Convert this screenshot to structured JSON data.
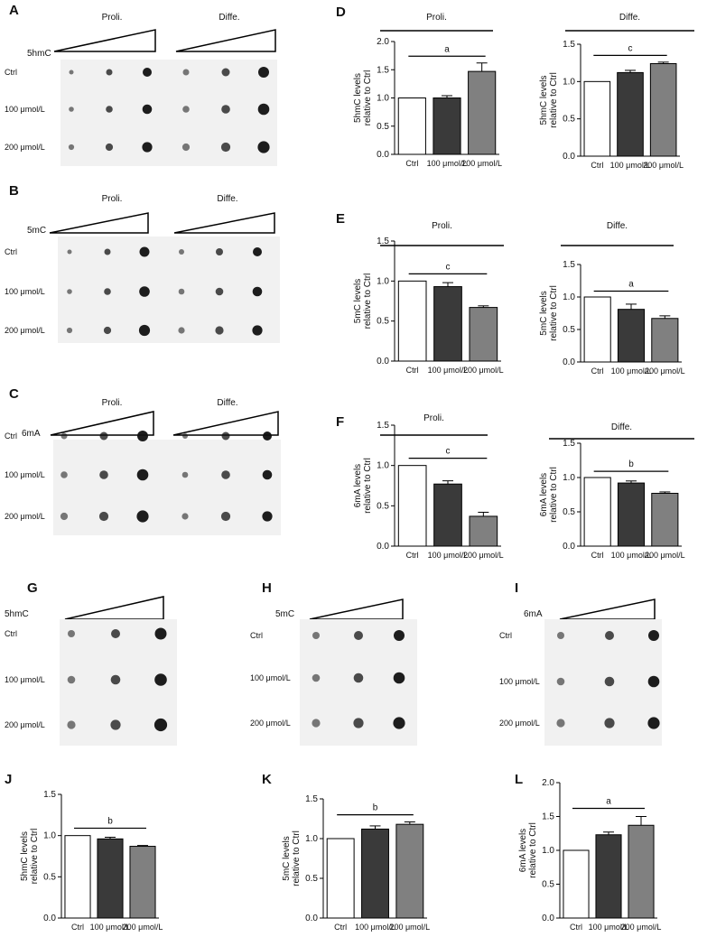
{
  "colors": {
    "ctrl_bar": "#ffffff",
    "mid_bar": "#3a3a3a",
    "high_bar": "#808080",
    "blot_bg": "#f1f1f1",
    "dot": "#111111"
  },
  "blots": [
    {
      "id": "A",
      "marker": "5hmC",
      "groups": [
        "Proli.",
        "Diffe."
      ],
      "rows": [
        "Ctrl",
        "100 μmol/L",
        "200 μmol/L"
      ],
      "cols": 3
    },
    {
      "id": "B",
      "marker": "5mC",
      "groups": [
        "Proli.",
        "Diffe."
      ],
      "rows": [
        "Ctrl",
        "100 μmol/L",
        "200 μmol/L"
      ],
      "cols": 3
    },
    {
      "id": "C",
      "marker": "6mA",
      "groups": [
        "Proli.",
        "Diffe."
      ],
      "rows": [
        "Ctrl",
        "100 μmol/L",
        "200 μmol/L"
      ],
      "cols": 3
    },
    {
      "id": "G",
      "marker": "5hmC",
      "groups": [],
      "rows": [
        "Ctrl",
        "100 μmol/L",
        "200 μmol/L"
      ],
      "cols": 3
    },
    {
      "id": "H",
      "marker": "5mC",
      "groups": [],
      "rows": [
        "Ctrl",
        "100 μmol/L",
        "200 μmol/L"
      ],
      "cols": 3
    },
    {
      "id": "I",
      "marker": "6mA",
      "groups": [],
      "rows": [
        "Ctrl",
        "100 μmol/L",
        "200 μmol/L"
      ],
      "cols": 3
    }
  ],
  "chart_data": [
    {
      "id": "D",
      "type": "bar",
      "title": "Proli.",
      "ylabel": "5hmC levels relative to Ctrl",
      "categories": [
        "Ctrl",
        "100 μmol/L",
        "200 μmol/L"
      ],
      "values": [
        1.0,
        1.0,
        1.47
      ],
      "errors": [
        0,
        0.04,
        0.15
      ],
      "ylim": [
        0,
        2.0
      ],
      "yticks": [
        "0.0",
        "0.5",
        "1.0",
        "1.5",
        "2.0"
      ],
      "sig": "a"
    },
    {
      "id": "D2",
      "type": "bar",
      "title": "Diffe.",
      "ylabel": "5hmC levels relative to Ctrl",
      "categories": [
        "Ctrl",
        "100 μmol/L",
        "200 μmol/L"
      ],
      "values": [
        1.0,
        1.12,
        1.24
      ],
      "errors": [
        0,
        0.03,
        0.02
      ],
      "ylim": [
        0,
        1.5
      ],
      "yticks": [
        "0.0",
        "0.5",
        "1.0",
        "1.5"
      ],
      "sig": "c"
    },
    {
      "id": "E",
      "type": "bar",
      "title": "Proli.",
      "ylabel": "5mC levels relative to Ctrl",
      "categories": [
        "Ctrl",
        "100 μmol/L",
        "200 μmol/L"
      ],
      "values": [
        1.0,
        0.93,
        0.67
      ],
      "errors": [
        0,
        0.05,
        0.02
      ],
      "ylim": [
        0,
        1.5
      ],
      "yticks": [
        "0.0",
        "0.5",
        "1.0",
        "1.5"
      ],
      "sig": "c"
    },
    {
      "id": "E2",
      "type": "bar",
      "title": "Diffe.",
      "ylabel": "5mC levels relative to Ctrl",
      "categories": [
        "Ctrl",
        "100 μmol/L",
        "200 μmol/L"
      ],
      "values": [
        1.0,
        0.81,
        0.67
      ],
      "errors": [
        0,
        0.08,
        0.04
      ],
      "ylim": [
        0,
        1.5
      ],
      "yticks": [
        "0.0",
        "0.5",
        "1.0",
        "1.5"
      ],
      "sig": "a"
    },
    {
      "id": "F",
      "type": "bar",
      "title": "Proli.",
      "ylabel": "6mA levels relative to Ctrl",
      "categories": [
        "Ctrl",
        "100 μmol/L",
        "200 μmol/L"
      ],
      "values": [
        1.0,
        0.77,
        0.37
      ],
      "errors": [
        0,
        0.04,
        0.05
      ],
      "ylim": [
        0,
        1.5
      ],
      "yticks": [
        "0.0",
        "0.5",
        "1.0",
        "1.5"
      ],
      "sig": "c"
    },
    {
      "id": "F2",
      "type": "bar",
      "title": "Diffe.",
      "ylabel": "6mA levels relative to Ctrl",
      "categories": [
        "Ctrl",
        "100 μmol/L",
        "200 μmol/L"
      ],
      "values": [
        1.0,
        0.92,
        0.77
      ],
      "errors": [
        0,
        0.03,
        0.02
      ],
      "ylim": [
        0,
        1.5
      ],
      "yticks": [
        "0.0",
        "0.5",
        "1.0",
        "1.5"
      ],
      "sig": "b"
    },
    {
      "id": "J",
      "type": "bar",
      "title": "",
      "ylabel": "5hmC levels relative to Ctrl",
      "categories": [
        "Ctrl",
        "100 μmol/L",
        "200 μmol/L"
      ],
      "values": [
        1.0,
        0.96,
        0.87
      ],
      "errors": [
        0,
        0.02,
        0.01
      ],
      "ylim": [
        0,
        1.5
      ],
      "yticks": [
        "0.0",
        "0.5",
        "1.0",
        "1.5"
      ],
      "sig": "b"
    },
    {
      "id": "K",
      "type": "bar",
      "title": "",
      "ylabel": "5mC levels relative to Ctrl",
      "categories": [
        "Ctrl",
        "100 μmol/L",
        "200 μmol/L"
      ],
      "values": [
        1.0,
        1.12,
        1.18
      ],
      "errors": [
        0,
        0.04,
        0.03
      ],
      "ylim": [
        0,
        1.5
      ],
      "yticks": [
        "0.0",
        "0.5",
        "1.0",
        "1.5"
      ],
      "sig": "b"
    },
    {
      "id": "L",
      "type": "bar",
      "title": "",
      "ylabel": "6mA levels relative to Ctrl",
      "categories": [
        "Ctrl",
        "100 μmol/L",
        "200 μmol/L"
      ],
      "values": [
        1.0,
        1.23,
        1.37
      ],
      "errors": [
        0,
        0.04,
        0.13
      ],
      "ylim": [
        0,
        2.0
      ],
      "yticks": [
        "0.0",
        "0.5",
        "1.0",
        "1.5",
        "2.0"
      ],
      "sig": "a"
    }
  ]
}
